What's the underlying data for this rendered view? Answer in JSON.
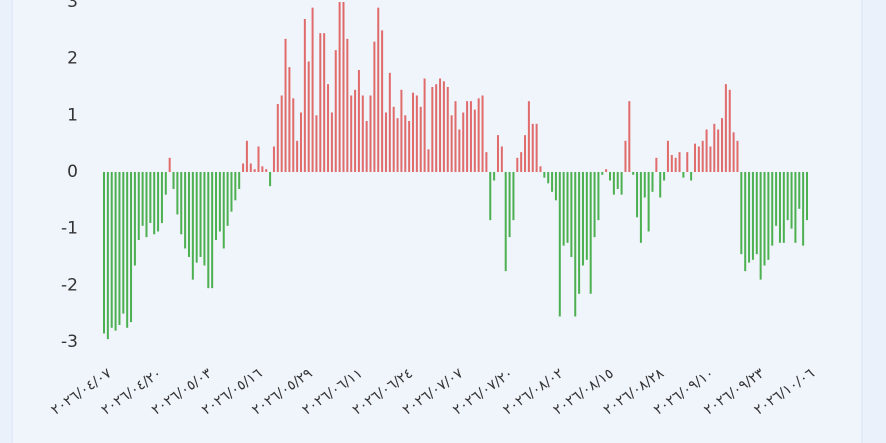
{
  "chart_data": {
    "type": "bar",
    "categories": [
      "٢٠٢٦/٠٤/٠٧",
      null,
      null,
      null,
      null,
      null,
      null,
      null,
      null,
      null,
      null,
      null,
      null,
      "٢٠٢٦/٠٤/٢٠",
      null,
      null,
      null,
      null,
      null,
      null,
      null,
      null,
      null,
      null,
      null,
      null,
      "٢٠٢٦/٠٥/٠٣",
      null,
      null,
      null,
      null,
      null,
      null,
      null,
      null,
      null,
      null,
      null,
      null,
      "٢٠٢٦/٠٥/١٦",
      null,
      null,
      null,
      null,
      null,
      null,
      null,
      null,
      null,
      null,
      null,
      null,
      "٢٠٢٦/٠٥/٢٩",
      null,
      null,
      null,
      null,
      null,
      null,
      null,
      null,
      null,
      null,
      null,
      null,
      "٢٠٢٦/٠٦/١١",
      null,
      null,
      null,
      null,
      null,
      null,
      null,
      null,
      null,
      null,
      null,
      null,
      "٢٠٢٦/٠٦/٢٤",
      null,
      null,
      null,
      null,
      null,
      null,
      null,
      null,
      null,
      null,
      null,
      null,
      "٢٠٢٦/٠٧/٠٧",
      null,
      null,
      null,
      null,
      null,
      null,
      null,
      null,
      null,
      null,
      null,
      null,
      "٢٠٢٦/٠٧/٢٠",
      null,
      null,
      null,
      null,
      null,
      null,
      null,
      null,
      null,
      null,
      null,
      null,
      "٢٠٢٦/٠٨/٠٢",
      null,
      null,
      null,
      null,
      null,
      null,
      null,
      null,
      null,
      null,
      null,
      null,
      "٢٠٢٦/٠٨/١٥",
      null,
      null,
      null,
      null,
      null,
      null,
      null,
      null,
      null,
      null,
      null,
      null,
      "٢٠٢٦/٠٨/٢٨",
      null,
      null,
      null,
      null,
      null,
      null,
      null,
      null,
      null,
      null,
      null,
      null,
      "٢٠٢٦/٠٩/١٠",
      null,
      null,
      null,
      null,
      null,
      null,
      null,
      null,
      null,
      null,
      null,
      null,
      "٢٠٢٦/٠٩/٢٣",
      null,
      null,
      null,
      null,
      null,
      null,
      null,
      null,
      null,
      null,
      null,
      null,
      "٢٠٢٦/١٠/٠٦"
    ],
    "values": [
      -2.85,
      -2.95,
      -2.75,
      -2.8,
      -2.7,
      -2.5,
      -2.75,
      -2.65,
      -1.65,
      -1.2,
      -0.95,
      -1.15,
      -0.9,
      -1.1,
      -1.05,
      -0.9,
      -0.4,
      0.25,
      -0.3,
      -0.75,
      -1.1,
      -1.35,
      -1.5,
      -1.9,
      -1.6,
      -1.5,
      -1.65,
      -2.05,
      -2.05,
      -1.2,
      -1.05,
      -1.35,
      -0.95,
      -0.7,
      -0.5,
      -0.3,
      0.15,
      0.55,
      0.15,
      0.05,
      0.45,
      0.1,
      0.05,
      -0.25,
      0.45,
      1.2,
      1.35,
      2.35,
      1.85,
      1.3,
      0.55,
      1.05,
      2.7,
      1.95,
      2.9,
      1.0,
      2.45,
      2.45,
      1.55,
      1.05,
      2.15,
      3.0,
      3.0,
      2.35,
      1.35,
      1.45,
      1.8,
      1.35,
      0.9,
      1.35,
      2.3,
      2.9,
      2.5,
      1.05,
      1.75,
      1.15,
      0.95,
      1.45,
      1.0,
      0.9,
      1.4,
      1.35,
      1.15,
      1.65,
      0.4,
      1.5,
      1.55,
      1.65,
      1.6,
      1.5,
      1.0,
      1.25,
      0.75,
      1.05,
      1.25,
      1.25,
      1.1,
      1.3,
      1.35,
      0.35,
      -0.85,
      -0.15,
      0.65,
      0.45,
      -1.75,
      -1.15,
      -0.85,
      0.25,
      0.35,
      0.65,
      1.25,
      0.85,
      0.85,
      0.1,
      -0.1,
      -0.2,
      -0.35,
      -0.5,
      -2.55,
      -1.3,
      -1.25,
      -1.5,
      -2.55,
      -2.15,
      -1.65,
      -1.55,
      -2.15,
      -1.15,
      -0.85,
      -0.05,
      0.05,
      -0.15,
      -0.4,
      -0.3,
      -0.4,
      0.55,
      1.25,
      -0.05,
      -0.8,
      -1.25,
      -0.45,
      -1.05,
      -0.35,
      0.25,
      -0.45,
      -0.15,
      0.55,
      0.3,
      0.25,
      0.35,
      -0.1,
      0.35,
      -0.15,
      0.5,
      0.45,
      0.55,
      0.75,
      0.45,
      0.85,
      0.75,
      0.95,
      1.55,
      1.45,
      0.7,
      0.55,
      -1.45,
      -1.75,
      -1.6,
      -1.55,
      -1.45,
      -1.9,
      -1.65,
      -1.55,
      -1.3,
      -0.95,
      -1.25,
      -1.25,
      -0.85,
      -1.0,
      -1.25,
      -0.65,
      -1.3,
      -0.85
    ],
    "positive_color": "#e06b6b",
    "negative_color": "#4cb050",
    "ylim": [
      -3.2,
      3.0
    ],
    "yticks": [
      -3,
      -2,
      -1,
      0,
      1,
      2,
      3
    ]
  }
}
